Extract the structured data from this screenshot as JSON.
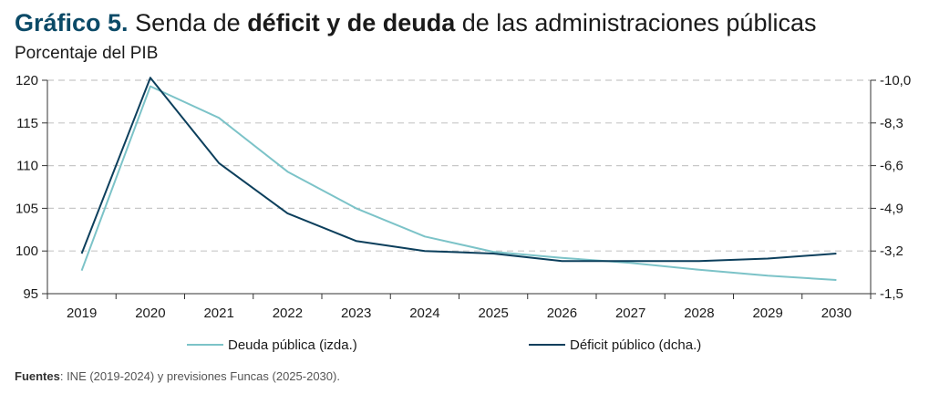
{
  "header": {
    "number": "Gráfico 5.",
    "t1": "Senda de",
    "t2": "déficit y de deuda",
    "t3": "de las administraciones públicas",
    "subtitle": "Porcentaje del PIB"
  },
  "source": {
    "label": "Fuentes",
    "text": ": INE (2019-2024) y previsiones Funcas (2025-2030)."
  },
  "chart_data": {
    "type": "line",
    "x": [
      "2019",
      "2020",
      "2021",
      "2022",
      "2023",
      "2024",
      "2025",
      "2026",
      "2027",
      "2028",
      "2029",
      "2030"
    ],
    "y_left": {
      "ticks": [
        "120",
        "115",
        "110",
        "105",
        "100",
        "95"
      ],
      "ylim": [
        95,
        120
      ]
    },
    "y_right": {
      "ticks": [
        "-10,0",
        "-8,3",
        "-6,6",
        "-4,9",
        "-3,2",
        "-1,5"
      ],
      "ylim": [
        -10.0,
        -1.5
      ]
    },
    "grid": true,
    "legend_position": "bottom",
    "series": [
      {
        "name": "Deuda pública (izda.)",
        "axis": "left",
        "color": "#7cc3c8",
        "values": [
          97.7,
          119.3,
          115.6,
          109.3,
          105.0,
          101.7,
          99.9,
          99.2,
          98.6,
          97.8,
          97.1,
          96.6
        ]
      },
      {
        "name": "Déficit público (dcha.)",
        "axis": "right",
        "color": "#0c3f5c",
        "values": [
          -3.1,
          -10.1,
          -6.7,
          -4.7,
          -3.6,
          -3.2,
          -3.1,
          -2.8,
          -2.8,
          -2.8,
          -2.9,
          -3.1
        ]
      }
    ]
  }
}
